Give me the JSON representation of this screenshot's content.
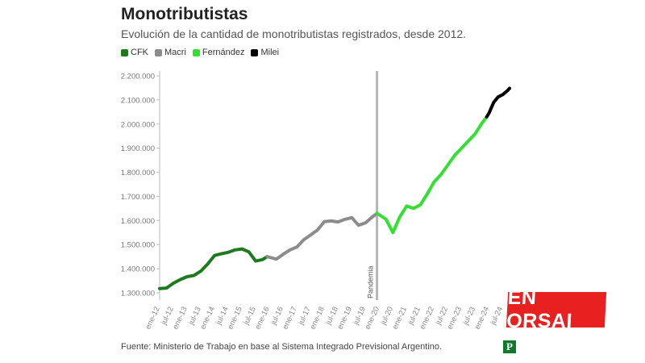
{
  "header": {
    "title": "Monotributistas",
    "subtitle": "Evolución de la cantidad de monotributistas registrados, desde 2012."
  },
  "legend": [
    {
      "label": "CFK",
      "color": "#1e7a1e"
    },
    {
      "label": "Macri",
      "color": "#8c8c8c"
    },
    {
      "label": "Fernández",
      "color": "#33e033"
    },
    {
      "label": "Milei",
      "color": "#000000"
    }
  ],
  "annotation": {
    "label": "Pandemia"
  },
  "footer": {
    "source": "Fuente: Ministerio de Trabajo en base al Sistema Integrado Previsional Argentino."
  },
  "logo": {
    "letter": "P"
  },
  "overlay_badge": {
    "text": "EN ORSAI"
  },
  "chart_data": {
    "type": "line",
    "ylim": [
      1270000,
      2220000
    ],
    "xlim": [
      2012.0,
      2024.75
    ],
    "y_ticks": [
      {
        "value": 1300000,
        "label": "1.300.000"
      },
      {
        "value": 1400000,
        "label": "1.400.000"
      },
      {
        "value": 1500000,
        "label": "1.500.000"
      },
      {
        "value": 1600000,
        "label": "1.600.000"
      },
      {
        "value": 1700000,
        "label": "1.700.000"
      },
      {
        "value": 1800000,
        "label": "1.800.000"
      },
      {
        "value": 1900000,
        "label": "1.900.000"
      },
      {
        "value": 2000000,
        "label": "2.000.000"
      },
      {
        "value": 2100000,
        "label": "2.100.000"
      },
      {
        "value": 2200000,
        "label": "2.200.000"
      }
    ],
    "x_ticks": [
      {
        "value": 2012.0,
        "label": "ene-12"
      },
      {
        "value": 2012.5,
        "label": "jul-12"
      },
      {
        "value": 2013.0,
        "label": "ene-13"
      },
      {
        "value": 2013.5,
        "label": "jul-13"
      },
      {
        "value": 2014.0,
        "label": "ene-14"
      },
      {
        "value": 2014.5,
        "label": "jul-14"
      },
      {
        "value": 2015.0,
        "label": "ene-15"
      },
      {
        "value": 2015.5,
        "label": "jul-15"
      },
      {
        "value": 2016.0,
        "label": "ene-16"
      },
      {
        "value": 2016.5,
        "label": "jul-16"
      },
      {
        "value": 2017.0,
        "label": "ene-17"
      },
      {
        "value": 2017.5,
        "label": "jul-17"
      },
      {
        "value": 2018.0,
        "label": "ene-18"
      },
      {
        "value": 2018.5,
        "label": "jul-18"
      },
      {
        "value": 2019.0,
        "label": "ene-19"
      },
      {
        "value": 2019.5,
        "label": "jul-19"
      },
      {
        "value": 2020.0,
        "label": "ene-20"
      },
      {
        "value": 2020.5,
        "label": "jul-20"
      },
      {
        "value": 2021.0,
        "label": "ene-21"
      },
      {
        "value": 2021.5,
        "label": "jul-21"
      },
      {
        "value": 2022.0,
        "label": "ene-22"
      },
      {
        "value": 2022.5,
        "label": "jul-22"
      },
      {
        "value": 2023.0,
        "label": "ene-23"
      },
      {
        "value": 2023.5,
        "label": "jul-23"
      },
      {
        "value": 2024.0,
        "label": "ene-24"
      },
      {
        "value": 2024.5,
        "label": "jul-24"
      }
    ],
    "vline": {
      "x": 2019.92
    },
    "series": [
      {
        "name": "CFK",
        "color": "#1e7a1e",
        "points": [
          [
            2012.0,
            1318000
          ],
          [
            2012.25,
            1320000
          ],
          [
            2012.5,
            1340000
          ],
          [
            2012.75,
            1355000
          ],
          [
            2013.0,
            1367000
          ],
          [
            2013.25,
            1372000
          ],
          [
            2013.5,
            1390000
          ],
          [
            2013.75,
            1420000
          ],
          [
            2014.0,
            1455000
          ],
          [
            2014.25,
            1462000
          ],
          [
            2014.5,
            1468000
          ],
          [
            2014.75,
            1478000
          ],
          [
            2015.0,
            1482000
          ],
          [
            2015.25,
            1470000
          ],
          [
            2015.5,
            1432000
          ],
          [
            2015.75,
            1438000
          ],
          [
            2015.92,
            1450000
          ]
        ]
      },
      {
        "name": "Macri",
        "color": "#8c8c8c",
        "points": [
          [
            2015.92,
            1450000
          ],
          [
            2016.25,
            1440000
          ],
          [
            2016.5,
            1460000
          ],
          [
            2016.75,
            1478000
          ],
          [
            2017.0,
            1490000
          ],
          [
            2017.25,
            1520000
          ],
          [
            2017.5,
            1540000
          ],
          [
            2017.75,
            1560000
          ],
          [
            2018.0,
            1595000
          ],
          [
            2018.25,
            1598000
          ],
          [
            2018.5,
            1594000
          ],
          [
            2018.75,
            1605000
          ],
          [
            2019.0,
            1612000
          ],
          [
            2019.25,
            1580000
          ],
          [
            2019.5,
            1590000
          ],
          [
            2019.75,
            1615000
          ],
          [
            2019.92,
            1630000
          ]
        ]
      },
      {
        "name": "Fernández",
        "color": "#33e033",
        "points": [
          [
            2019.92,
            1630000
          ],
          [
            2020.25,
            1605000
          ],
          [
            2020.5,
            1550000
          ],
          [
            2020.75,
            1615000
          ],
          [
            2021.0,
            1660000
          ],
          [
            2021.25,
            1650000
          ],
          [
            2021.5,
            1665000
          ],
          [
            2021.75,
            1710000
          ],
          [
            2022.0,
            1760000
          ],
          [
            2022.25,
            1790000
          ],
          [
            2022.5,
            1830000
          ],
          [
            2022.75,
            1870000
          ],
          [
            2023.0,
            1900000
          ],
          [
            2023.25,
            1930000
          ],
          [
            2023.5,
            1960000
          ],
          [
            2023.75,
            2005000
          ],
          [
            2023.92,
            2030000
          ]
        ]
      },
      {
        "name": "Milei",
        "color": "#000000",
        "points": [
          [
            2023.92,
            2030000
          ],
          [
            2024.0,
            2045000
          ],
          [
            2024.17,
            2090000
          ],
          [
            2024.33,
            2112000
          ],
          [
            2024.5,
            2122000
          ],
          [
            2024.67,
            2138000
          ],
          [
            2024.75,
            2148000
          ]
        ]
      }
    ]
  }
}
